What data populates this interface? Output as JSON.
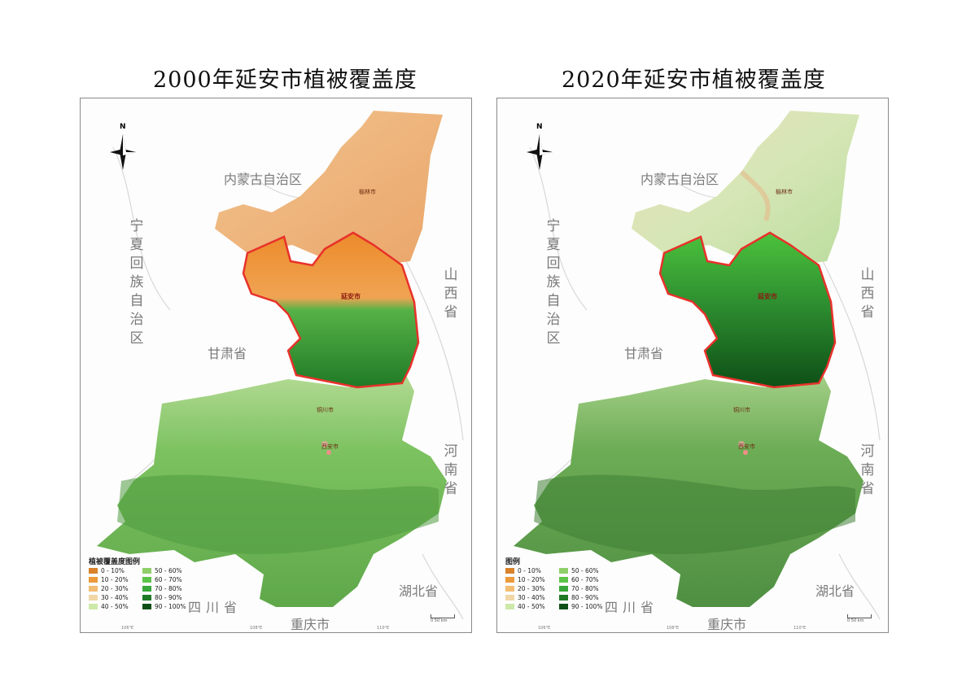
{
  "maps": [
    {
      "title": "2000年延安市植被覆盖度",
      "legend_title": "植被覆盖度图例",
      "year": 2000
    },
    {
      "title": "2020年延安市植被覆盖度",
      "legend_title": "图例",
      "year": 2020
    }
  ],
  "legend_items": [
    {
      "label": "0 - 10%",
      "color": "#d9822b"
    },
    {
      "label": "50 - 60%",
      "color": "#8fcf6a"
    },
    {
      "label": "10 - 20%",
      "color": "#ec9a3c"
    },
    {
      "label": "60 - 70%",
      "color": "#5cc448"
    },
    {
      "label": "20 - 30%",
      "color": "#f3bd73"
    },
    {
      "label": "70 - 80%",
      "color": "#38a83a"
    },
    {
      "label": "30 - 40%",
      "color": "#f1d7a6"
    },
    {
      "label": "80 - 90%",
      "color": "#1f7a26"
    },
    {
      "label": "40 - 50%",
      "color": "#cde9a8"
    },
    {
      "label": "90 - 100%",
      "color": "#0e4f17"
    }
  ],
  "regions": {
    "inner_mongolia": "内蒙古自治区",
    "ningxia": "宁夏回族自治区",
    "gansu": "甘肃省",
    "shanxi": "山西省",
    "henan": "河南省",
    "hubei": "湖北省",
    "sichuan": "四川省",
    "chongqing": "重庆市"
  },
  "cities": {
    "yanan": "延安市",
    "yulin": "榆林市",
    "xian": "西安市",
    "tongchuan": "铜川市"
  },
  "north_label": "N",
  "scale_text": "0  50 km",
  "coords": {
    "lon1": "106°E",
    "lon2": "108°E",
    "lon3": "110°E"
  },
  "colors": {
    "boundary": "#e8312a",
    "border": "#8a8a8a"
  }
}
